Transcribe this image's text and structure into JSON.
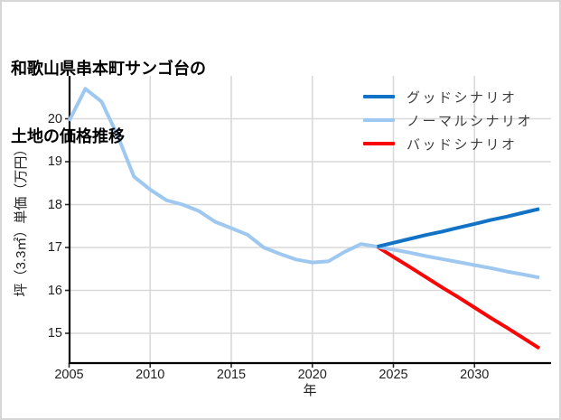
{
  "title": {
    "line1": "和歌山県串本町サンゴ台の",
    "line2": "土地の価格推移"
  },
  "colors": {
    "good_scenario": "#1273c6",
    "normal_scenario": "#9fc8f0",
    "bad_scenario": "#f90505",
    "gridline": "#d9d9d9",
    "spine": "#000000",
    "tick": "#2a2a2a",
    "card_border": "#d6d6d6",
    "background": "#ffffff"
  },
  "legend": [
    {
      "label": "グッドシナリオ",
      "color_key": "good_scenario"
    },
    {
      "label": "ノーマルシナリオ",
      "color_key": "normal_scenario"
    },
    {
      "label": "バッドシナリオ",
      "color_key": "bad_scenario"
    }
  ],
  "chart_data": {
    "type": "line",
    "title": "和歌山県串本町サンゴ台の土地の価格推移",
    "xlabel": "年",
    "ylabel": "坪（3.3㎡）単価（万円）",
    "xlim": [
      2005,
      2034.7
    ],
    "ylim": [
      14.3,
      21.0
    ],
    "xticks": [
      2005,
      2010,
      2015,
      2020,
      2025,
      2030
    ],
    "yticks": [
      15,
      16,
      17,
      18,
      19,
      20
    ],
    "grid": true,
    "legend_position": "upper right",
    "series": [
      {
        "name": "price-history",
        "label": "",
        "color_key": "normal_scenario",
        "x": [
          2005,
          2006,
          2007,
          2008,
          2009,
          2010,
          2011,
          2012,
          2013,
          2014,
          2015,
          2016,
          2017,
          2018,
          2019,
          2020,
          2021,
          2022,
          2023,
          2024
        ],
        "y": [
          19.95,
          20.7,
          20.4,
          19.6,
          18.65,
          18.35,
          18.1,
          18.0,
          17.85,
          17.6,
          17.45,
          17.3,
          17.0,
          16.85,
          16.72,
          16.65,
          16.68,
          16.9,
          17.08,
          17.02
        ]
      },
      {
        "name": "bad-scenario",
        "label": "バッドシナリオ",
        "color_key": "bad_scenario",
        "x": [
          2024,
          2025,
          2026,
          2027,
          2028,
          2029,
          2030,
          2031,
          2032,
          2033,
          2034
        ],
        "y": [
          17.02,
          16.78,
          16.55,
          16.31,
          16.07,
          15.84,
          15.6,
          15.36,
          15.13,
          14.89,
          14.65
        ]
      },
      {
        "name": "normal-scenario",
        "label": "ノーマルシナリオ",
        "color_key": "normal_scenario",
        "x": [
          2024,
          2025,
          2026,
          2027,
          2028,
          2029,
          2030,
          2031,
          2032,
          2033,
          2034
        ],
        "y": [
          17.02,
          16.95,
          16.88,
          16.8,
          16.73,
          16.66,
          16.59,
          16.52,
          16.44,
          16.37,
          16.3
        ]
      },
      {
        "name": "good-scenario",
        "label": "グッドシナリオ",
        "color_key": "good_scenario",
        "x": [
          2024,
          2025,
          2026,
          2027,
          2028,
          2029,
          2030,
          2031,
          2032,
          2033,
          2034
        ],
        "y": [
          17.02,
          17.11,
          17.2,
          17.29,
          17.37,
          17.46,
          17.55,
          17.64,
          17.72,
          17.81,
          17.9
        ]
      }
    ]
  }
}
